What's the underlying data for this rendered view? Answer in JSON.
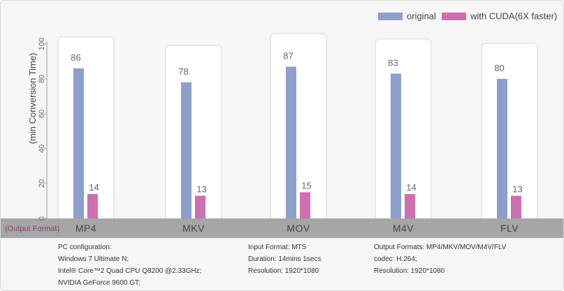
{
  "chart_data": {
    "type": "bar",
    "categories": [
      "MP4",
      "MKV",
      "MOV",
      "M4V",
      "FLV"
    ],
    "series": [
      {
        "name": "original",
        "values": [
          86,
          78,
          87,
          83,
          80
        ],
        "color": "#8d9fcb"
      },
      {
        "name": "with CUDA(6X faster)",
        "values": [
          14,
          13,
          15,
          14,
          13
        ],
        "color": "#cd6fb0"
      }
    ],
    "ylabel": "(min   Conversion Time)",
    "xlabel": "(Output Format)",
    "ylim": [
      0,
      100
    ],
    "yticks": [
      "0",
      "20",
      "40",
      "60",
      "80",
      "100"
    ],
    "legend_position": "top-right",
    "grid": false
  },
  "info": {
    "pc_config": [
      "PC configuration:",
      "Windows 7 Ultimate N;",
      "Intel® Core™2 Quad CPU Q8200 @2.33GHz;",
      "NVIDIA GeForce 9600 GT;"
    ],
    "input": [
      "Input Format: MTS",
      "Duration: 14mins 1secs",
      "Resolution: 1920*1080"
    ],
    "output": [
      "Output Formats: MP4/MKV/MOV/M4V/FLV",
      "codec: H.264;",
      "Resolution: 1920*1080"
    ]
  }
}
